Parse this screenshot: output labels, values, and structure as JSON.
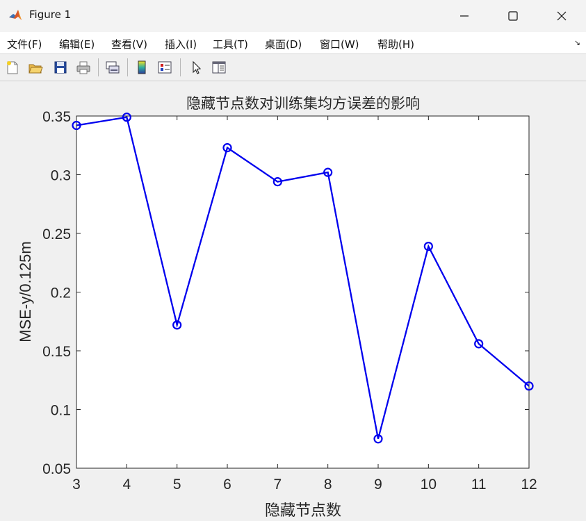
{
  "window": {
    "title": "Figure 1",
    "icon": "matlab-logo-icon"
  },
  "menu": {
    "items": [
      "文件(F)",
      "编辑(E)",
      "查看(V)",
      "插入(I)",
      "工具(T)",
      "桌面(D)",
      "窗口(W)",
      "帮助(H)"
    ],
    "overflow_glyph": "↘"
  },
  "toolbar": {
    "icons": [
      "new-figure-icon",
      "open-file-icon",
      "save-icon",
      "print-icon",
      "link-plot-icon",
      "insert-colorbar-icon",
      "insert-legend-icon",
      "edit-plot-icon",
      "property-inspector-icon"
    ]
  },
  "chart_data": {
    "type": "line",
    "title": "隐藏节点数对训练集均方误差的影响",
    "xlabel": "隐藏节点数",
    "ylabel": "MSE-y/0.125m",
    "x": [
      3,
      4,
      5,
      6,
      7,
      8,
      9,
      10,
      11,
      12
    ],
    "series": [
      {
        "values": [
          0.342,
          0.349,
          0.172,
          0.323,
          0.294,
          0.302,
          0.075,
          0.239,
          0.156,
          0.12
        ],
        "color": "#0000ee",
        "marker": "circle"
      }
    ],
    "xlim": [
      3,
      12
    ],
    "ylim": [
      0.05,
      0.35
    ],
    "xticks": [
      "3",
      "4",
      "5",
      "6",
      "7",
      "8",
      "9",
      "10",
      "11",
      "12"
    ],
    "yticks": [
      "0.05",
      "0.1",
      "0.15",
      "0.2",
      "0.25",
      "0.3",
      "0.35"
    ],
    "grid": false
  }
}
